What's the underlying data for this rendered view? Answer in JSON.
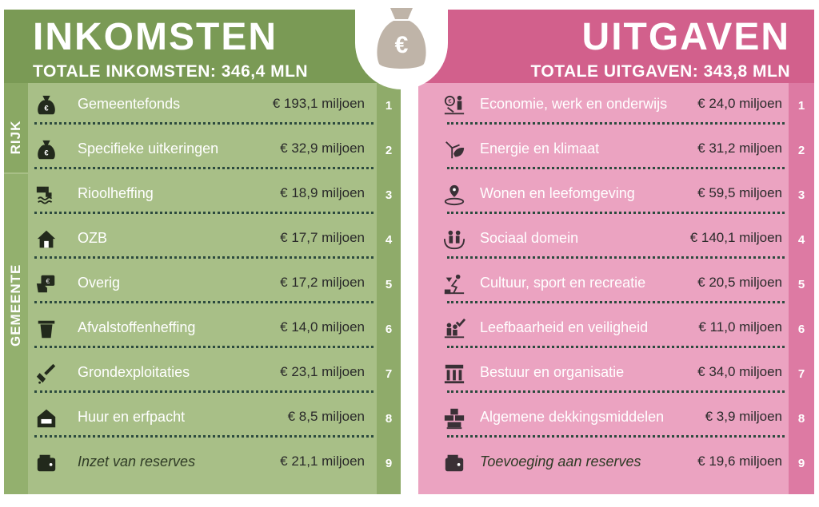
{
  "inkomsten": {
    "title": "INKOMSTEN",
    "subtitle": "TOTALE INKOMSTEN: 346,4 MLN",
    "group_rijk": "RIJK",
    "group_gemeente": "GEMEENTE",
    "items": [
      {
        "num": "1",
        "label": "Gemeentefonds",
        "amount": "€ 193,1 miljoen",
        "icon": "money-bag-icon",
        "italic": false
      },
      {
        "num": "2",
        "label": "Specifieke uitkeringen",
        "amount": "€ 32,9 miljoen",
        "icon": "money-bag-icon",
        "italic": false
      },
      {
        "num": "3",
        "label": "Rioolheffing",
        "amount": "€ 18,9 miljoen",
        "icon": "sewer-pipe-icon",
        "italic": false
      },
      {
        "num": "4",
        "label": "OZB",
        "amount": "€ 17,7 miljoen",
        "icon": "house-icon",
        "italic": false
      },
      {
        "num": "5",
        "label": "Overig",
        "amount": "€ 17,2 miljoen",
        "icon": "hand-cash-icon",
        "italic": false
      },
      {
        "num": "6",
        "label": "Afvalstoffenheffing",
        "amount": "€ 14,0 miljoen",
        "icon": "trash-bin-icon",
        "italic": false
      },
      {
        "num": "7",
        "label": "Grondexploitaties",
        "amount": "€ 23,1 miljoen",
        "icon": "shovel-icon",
        "italic": false
      },
      {
        "num": "8",
        "label": "Huur en erfpacht",
        "amount": "€ 8,5 miljoen",
        "icon": "rental-house-icon",
        "italic": false
      },
      {
        "num": "9",
        "label": "Inzet van reserves",
        "amount": "€ 21,1 miljoen",
        "icon": "wallet-icon",
        "italic": true
      }
    ]
  },
  "uitgaven": {
    "title": "UITGAVEN",
    "subtitle": "TOTALE UITGAVEN: 343,8 MLN",
    "items": [
      {
        "num": "1",
        "label": "Economie, werk en onderwijs",
        "amount": "€ 24,0 miljoen",
        "icon": "economy-work-icon",
        "italic": false
      },
      {
        "num": "2",
        "label": "Energie en klimaat",
        "amount": "€ 31,2 miljoen",
        "icon": "wind-turbine-leaf-icon",
        "italic": false
      },
      {
        "num": "3",
        "label": "Wonen en leefomgeving",
        "amount": "€ 59,5 miljoen",
        "icon": "location-pin-icon",
        "italic": false
      },
      {
        "num": "4",
        "label": "Sociaal domein",
        "amount": "€ 140,1 miljoen",
        "icon": "family-hands-icon",
        "italic": false
      },
      {
        "num": "5",
        "label": "Cultuur, sport en recreatie",
        "amount": "€ 20,5 miljoen",
        "icon": "recreation-icon",
        "italic": false
      },
      {
        "num": "6",
        "label": "Leefbaarheid en veiligheid",
        "amount": "€ 11,0 miljoen",
        "icon": "people-check-icon",
        "italic": false
      },
      {
        "num": "7",
        "label": "Bestuur en organisatie",
        "amount": "€ 34,0 miljoen",
        "icon": "town-hall-icon",
        "italic": false
      },
      {
        "num": "8",
        "label": "Algemene dekkingsmiddelen",
        "amount": "€ 3,9 miljoen",
        "icon": "coin-stacks-icon",
        "italic": false
      },
      {
        "num": "9",
        "label": "Toevoeging aan reserves",
        "amount": "€ 19,6 miljoen",
        "icon": "wallet-icon",
        "italic": true
      }
    ]
  },
  "center_icon": {
    "name": "euro-money-bag-icon",
    "glyph": "€"
  },
  "colors": {
    "green_header": "#7a9a55",
    "green_body": "#a8bf87",
    "green_numcol": "#8fab6a",
    "pink_header": "#d2608c",
    "pink_body": "#eba3c1",
    "pink_numcol": "#dd7aa3",
    "bag": "#bfb4a8"
  }
}
